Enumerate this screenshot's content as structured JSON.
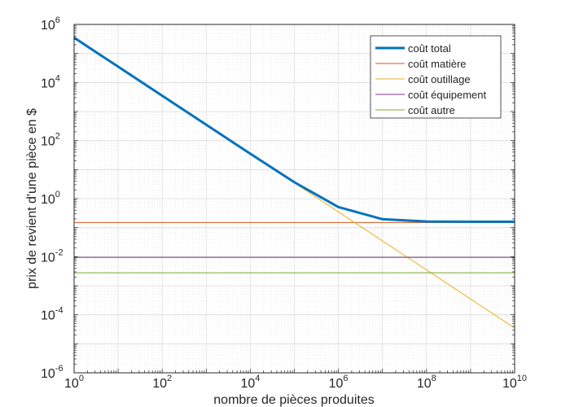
{
  "chart_data": {
    "type": "line",
    "xscale": "log",
    "yscale": "log",
    "xlabel": "nombre de pièces produites",
    "ylabel": "prix de revient d'une pièce en $",
    "xlim": [
      1,
      10000000000
    ],
    "ylim": [
      1e-06,
      1000000
    ],
    "grid": "on (major and minor)",
    "legend_position": "top-right",
    "x_tick_exponents": [
      "0",
      "2",
      "4",
      "6",
      "8",
      "10"
    ],
    "y_tick_exponents": [
      "6",
      "4",
      "2",
      "0",
      "-2",
      "-4",
      "-6"
    ],
    "tick_base": "10",
    "x": [
      1,
      10,
      100,
      1000,
      10000,
      100000,
      1000000,
      10000000,
      100000000,
      1000000000,
      10000000000
    ],
    "series": [
      {
        "name": "coût total",
        "color": "#0072BD",
        "width": 3,
        "values": [
          350000.16,
          35000.16,
          3500.16,
          350.16,
          35.16,
          3.66,
          0.51,
          0.195,
          0.1635,
          0.16035,
          0.16
        ]
      },
      {
        "name": "coût matière",
        "color": "#D95319",
        "width": 1,
        "values": [
          0.15,
          0.15,
          0.15,
          0.15,
          0.15,
          0.15,
          0.15,
          0.15,
          0.15,
          0.15,
          0.15
        ]
      },
      {
        "name": "coût outillage",
        "color": "#EDB120",
        "width": 1,
        "values": [
          350000,
          35000,
          3500,
          350,
          35,
          3.5,
          0.35,
          0.035,
          0.0035,
          0.00035,
          3.5e-05
        ]
      },
      {
        "name": "coût équipement",
        "color": "#7E2F8E",
        "width": 1,
        "values": [
          0.0095,
          0.0095,
          0.0095,
          0.0095,
          0.0095,
          0.0095,
          0.0095,
          0.0095,
          0.0095,
          0.0095,
          0.0095
        ]
      },
      {
        "name": "coût autre",
        "color": "#77AC30",
        "width": 1,
        "values": [
          0.0028,
          0.0028,
          0.0028,
          0.0028,
          0.0028,
          0.0028,
          0.0028,
          0.0028,
          0.0028,
          0.0028,
          0.0028
        ]
      }
    ]
  }
}
